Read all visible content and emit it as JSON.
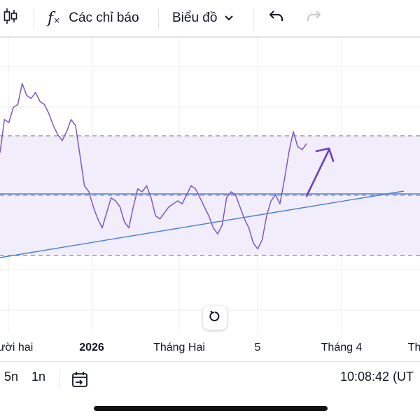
{
  "toolbar": {
    "indicators_label": "Các chỉ báo",
    "chart_type_label": "Biểu đồ"
  },
  "icons": {
    "candles": "candlestick-icon",
    "fx": "function-icon",
    "chevron": "chevron-down-icon",
    "undo": "undo-icon",
    "redo": "redo-icon",
    "reset": "reset-icon",
    "goto_date": "calendar-goto-icon"
  },
  "time_axis": {
    "labels": [
      "ười hai",
      "2026",
      "Tháng Hai",
      "5",
      "Tháng 4",
      "Th"
    ]
  },
  "bottom_bar": {
    "interval_5n": "5n",
    "interval_1n": "1n",
    "clock": "10:08:42 (UT"
  },
  "colors": {
    "price_line": "#7e57c2",
    "trend_line": "#4a7fd9",
    "range_fill": "#f1edfb",
    "dashed": "#8a8a8a",
    "grid": "#eeeef2"
  },
  "chart_data": {
    "type": "line",
    "series": [
      {
        "values": [
          265,
          320,
          315,
          340,
          345,
          380,
          360,
          355,
          365,
          350,
          345,
          330,
          310,
          295,
          285,
          300,
          320,
          310,
          260,
          210,
          200,
          175,
          155,
          140,
          165,
          190,
          185,
          175,
          150,
          140,
          175,
          205,
          200,
          210,
          190,
          160,
          155,
          165,
          175,
          180,
          185,
          180,
          195,
          210,
          205,
          190,
          175,
          160,
          140,
          130,
          145,
          190,
          200,
          195,
          175,
          155,
          140,
          115,
          105,
          120,
          160,
          185,
          195,
          180,
          220,
          265,
          300,
          275,
          270,
          280
        ]
      }
    ]
  }
}
